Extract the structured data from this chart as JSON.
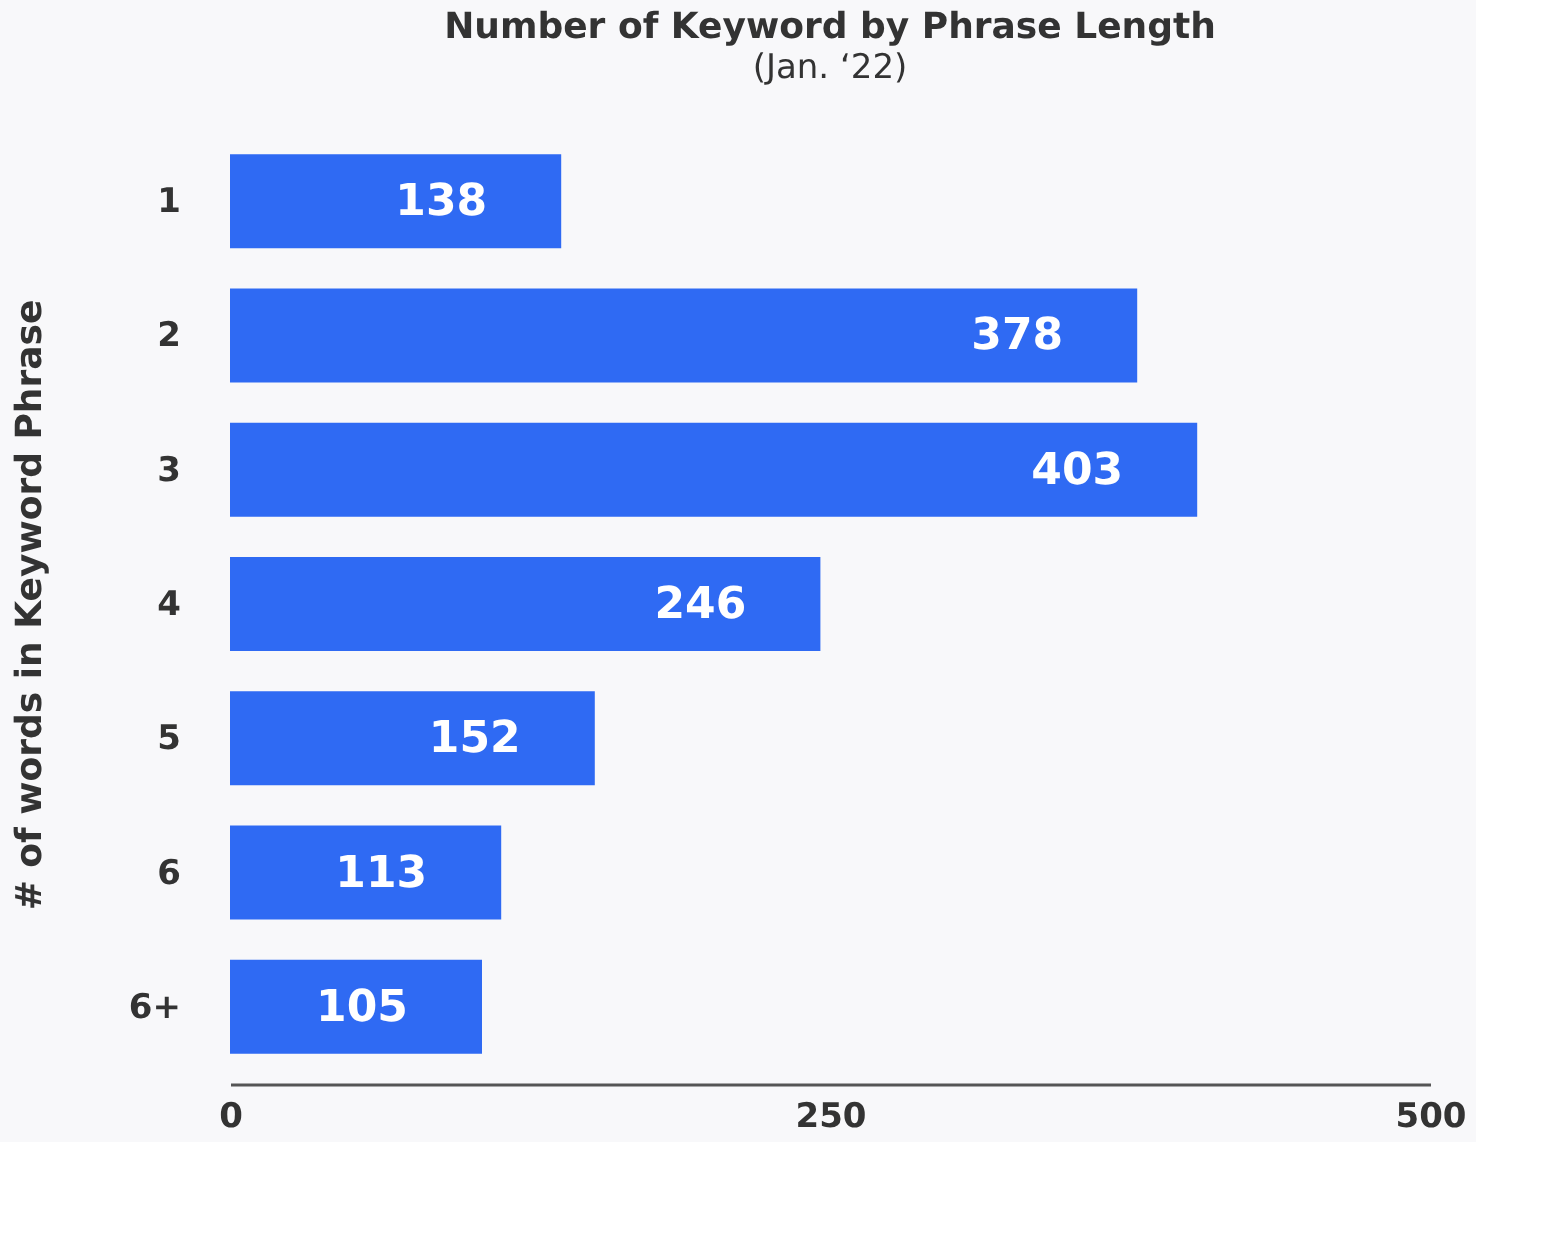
{
  "chart_data": {
    "type": "bar",
    "orientation": "horizontal",
    "title": "Number of Keyword by Phrase Length",
    "subtitle": "(Jan. ‘22)",
    "ylabel": "# of words in Keyword Phrase",
    "categories": [
      "1",
      "2",
      "3",
      "4",
      "5",
      "6",
      "6+"
    ],
    "values": [
      138,
      378,
      403,
      246,
      152,
      113,
      105
    ],
    "color": "#2f6af3",
    "xlim": [
      0,
      500
    ],
    "xticks": [
      0,
      250,
      500
    ],
    "grid": false,
    "data_labels": true
  }
}
